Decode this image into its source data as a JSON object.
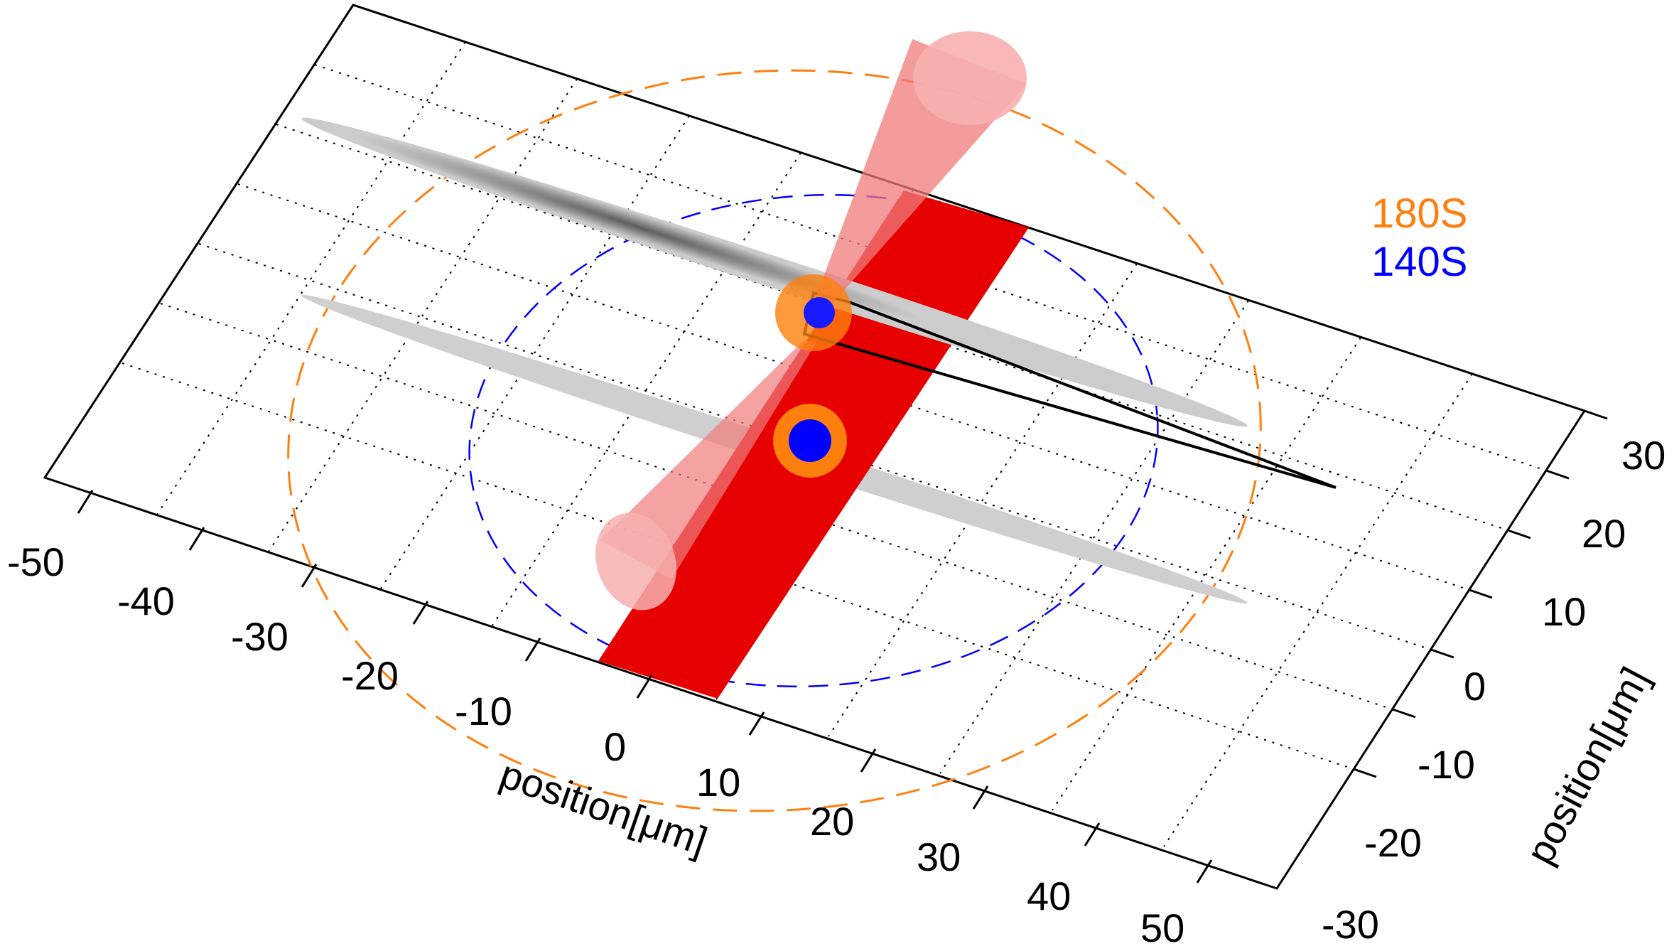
{
  "axes": {
    "x": {
      "title": "position[μm]",
      "ticks": [
        "-50",
        "-40",
        "-30",
        "-20",
        "-10",
        "0",
        "10",
        "20",
        "30",
        "40",
        "50"
      ]
    },
    "y": {
      "title": "position[μm]",
      "ticks": [
        "30",
        "20",
        "10",
        "0",
        "-10",
        "-20",
        "-30"
      ]
    }
  },
  "legend": [
    {
      "label": "180S",
      "color": "#ff7f0e"
    },
    {
      "label": "140S",
      "color": "#0000ff"
    }
  ],
  "colors": {
    "cloud": "#bdbdbd",
    "beam": "#e60000",
    "beam_transparent": "#f28080",
    "ring_outer": "#ff7f0e",
    "ring_inner": "#0000ff",
    "grid": "#000000"
  },
  "grid": "dotted",
  "view": "3d-perspective"
}
